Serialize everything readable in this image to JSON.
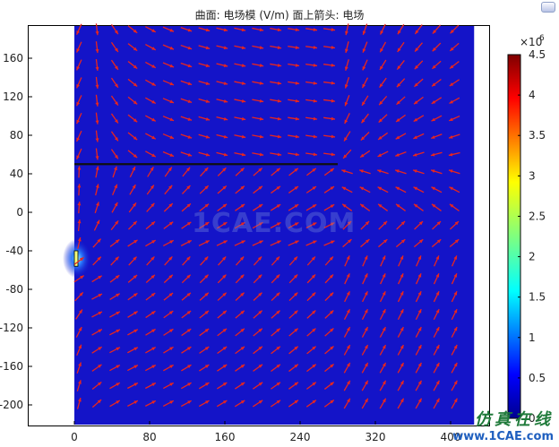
{
  "plot": {
    "title": "曲面: 电场模 (V/m)  面上箭头: 电场"
  },
  "axes": {
    "x_ticks": [
      "0",
      "80",
      "160",
      "240",
      "320",
      "400"
    ],
    "x_values": [
      0,
      80,
      160,
      240,
      320,
      400
    ],
    "y_ticks": [
      "160",
      "120",
      "80",
      "40",
      "0",
      "-40",
      "-80",
      "-120",
      "-160",
      "-200"
    ],
    "y_values": [
      160,
      120,
      80,
      40,
      0,
      -40,
      -80,
      -120,
      -160,
      -200
    ]
  },
  "colorbar": {
    "exponent_label": "×10",
    "exponent_power": "6",
    "ticks": [
      "4.5",
      "4",
      "3.5",
      "3",
      "2.5",
      "2",
      "1.5",
      "1",
      "0.5",
      "0"
    ],
    "tick_values": [
      4.5,
      4,
      3.5,
      3,
      2.5,
      2,
      1.5,
      1,
      0.5,
      0
    ]
  },
  "colors": {
    "field": "#1414c8",
    "arrows": "#e8261e",
    "electrode_line": "#101010"
  },
  "watermark": {
    "text": "1CAE.COM"
  },
  "logo": {
    "chinese": "仿真在线",
    "url": "www.1CAE.com"
  }
}
